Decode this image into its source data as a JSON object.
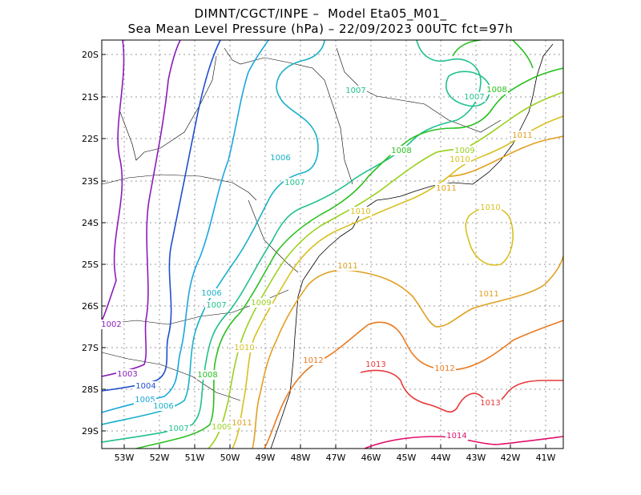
{
  "title_line1": "DIMNT/CGCT/INPE –  Model Eta05_M01_",
  "title_line2": "Sea Mean Level Pressure (hPa) – 22/09/2023 00UTC fct=97h",
  "x_ticks": [
    "53W",
    "52W",
    "51W",
    "50W",
    "49W",
    "48W",
    "47W",
    "46W",
    "45W",
    "44W",
    "43W",
    "42W",
    "41W"
  ],
  "y_ticks": [
    "20S",
    "21S",
    "22S",
    "23S",
    "24S",
    "25S",
    "26S",
    "27S",
    "28S",
    "29S"
  ],
  "contour_labels": [
    {
      "text": "1002",
      "color": "#8a1cb8"
    },
    {
      "text": "1003",
      "color": "#8a1cb8"
    },
    {
      "text": "1004",
      "color": "#1f4fd0"
    },
    {
      "text": "1005",
      "color": "#1aa6e0"
    },
    {
      "text": "1006",
      "color": "#1ab0c8"
    },
    {
      "text": "1006",
      "color": "#1ab0c8"
    },
    {
      "text": "1006",
      "color": "#1ab0c8"
    },
    {
      "text": "1007",
      "color": "#20c090"
    },
    {
      "text": "1007",
      "color": "#20c090"
    },
    {
      "text": "1007",
      "color": "#20c090"
    },
    {
      "text": "1007",
      "color": "#20c090"
    },
    {
      "text": "1007",
      "color": "#20c090"
    },
    {
      "text": "1008",
      "color": "#2ac020"
    },
    {
      "text": "1008",
      "color": "#2ac020"
    },
    {
      "text": "1008",
      "color": "#2ac020"
    },
    {
      "text": "1009",
      "color": "#9ad020"
    },
    {
      "text": "1009",
      "color": "#9ad020"
    },
    {
      "text": "1009",
      "color": "#9ad020"
    },
    {
      "text": "1010",
      "color": "#d8c020"
    },
    {
      "text": "1010",
      "color": "#d8c020"
    },
    {
      "text": "1010",
      "color": "#d8c020"
    },
    {
      "text": "1010",
      "color": "#d8c020"
    },
    {
      "text": "1011",
      "color": "#e0a020"
    },
    {
      "text": "1011",
      "color": "#e0a020"
    },
    {
      "text": "1011",
      "color": "#e0a020"
    },
    {
      "text": "1011",
      "color": "#e0a020"
    },
    {
      "text": "1011",
      "color": "#e0a020"
    },
    {
      "text": "1012",
      "color": "#e87a20"
    },
    {
      "text": "1012",
      "color": "#e87a20"
    },
    {
      "text": "1013",
      "color": "#e83838"
    },
    {
      "text": "1013",
      "color": "#e83838"
    },
    {
      "text": "1014",
      "color": "#e0106a"
    }
  ],
  "colors": {
    "grid": "#9a9a9a",
    "coast": "#000000",
    "frame": "#000000",
    "c1002": "#8a1cb8",
    "c1004": "#1f4fd0",
    "c1005": "#1aa6e0",
    "c1006": "#1ab0c8",
    "c1007": "#20c090",
    "c1008": "#2ac020",
    "c1009": "#9ad020",
    "c1010": "#d8c020",
    "c1011": "#e0a020",
    "c1012": "#e87a20",
    "c1013": "#e83838",
    "c1014": "#e0106a"
  }
}
